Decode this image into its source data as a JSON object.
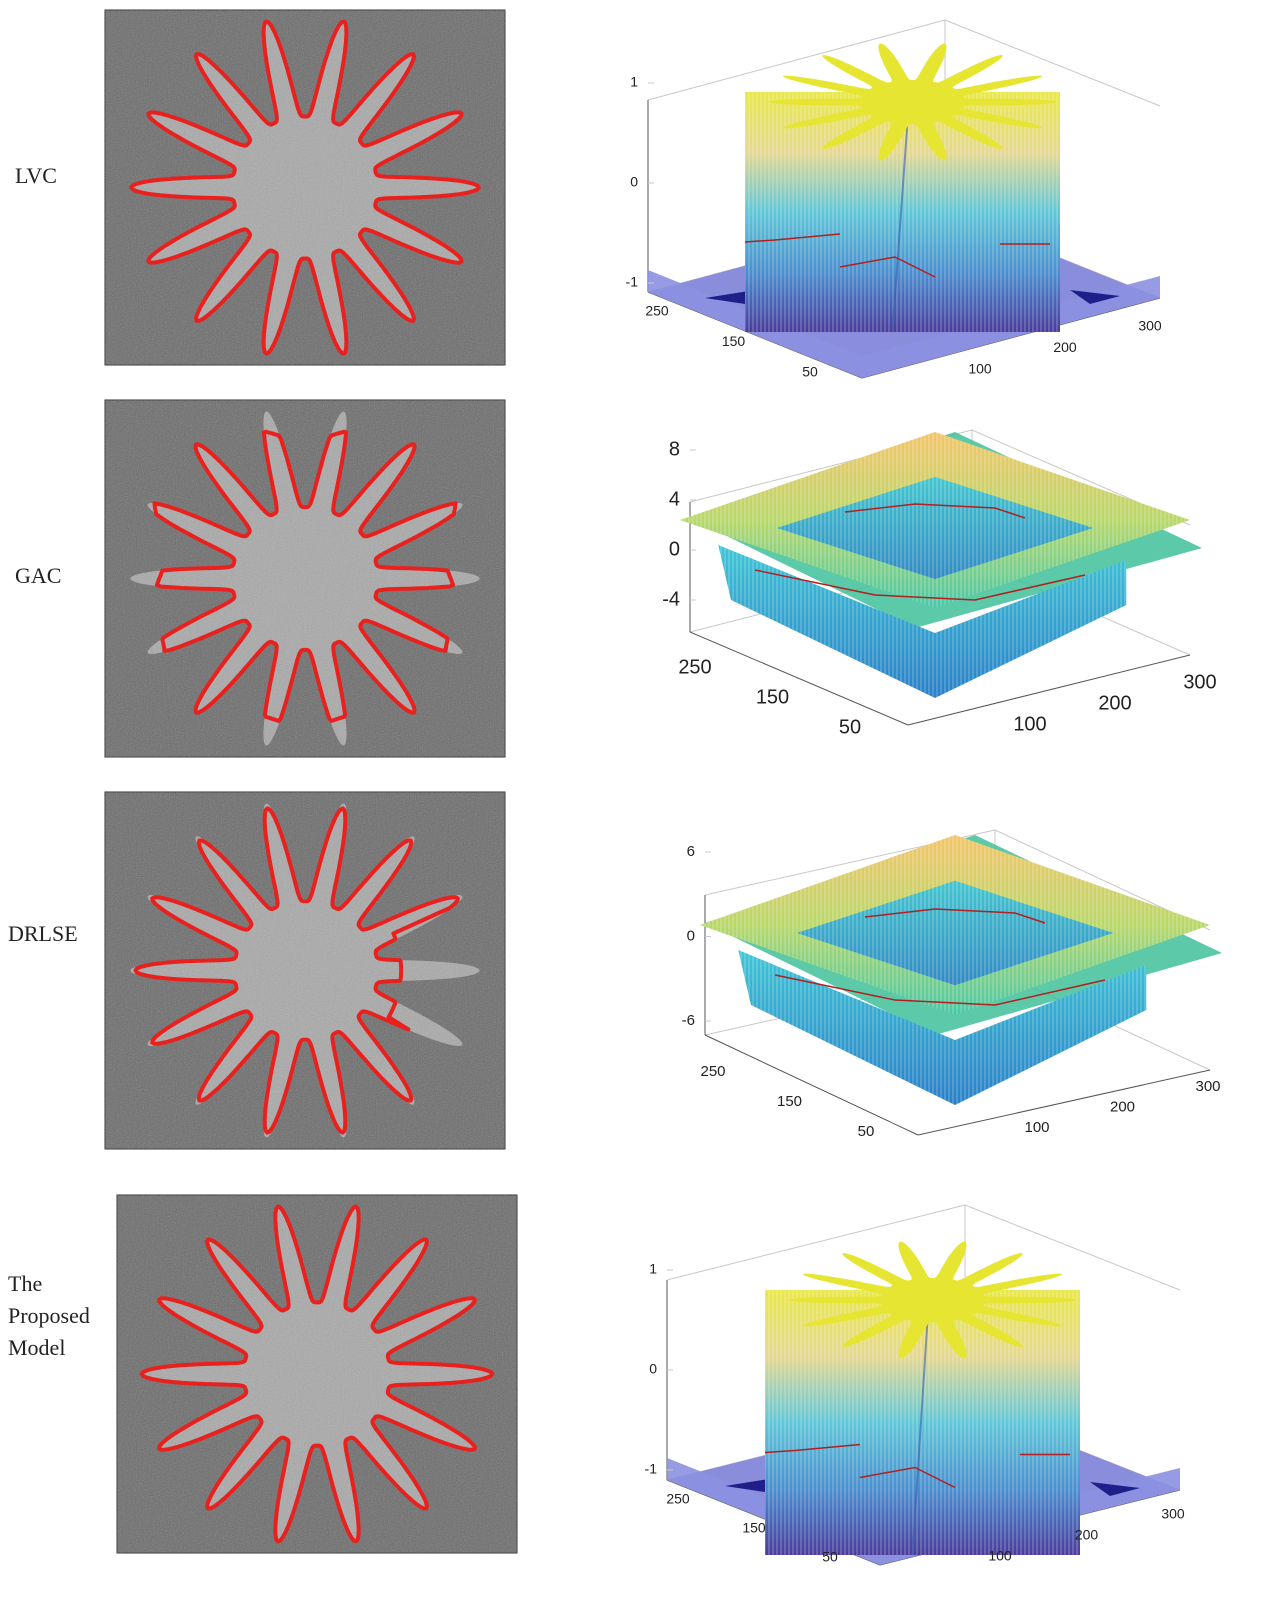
{
  "rows": [
    {
      "label": "LVC",
      "zticks": [
        1,
        0,
        -1
      ],
      "xticks": [
        250,
        150,
        50
      ],
      "yticks": [
        100,
        200,
        300
      ]
    },
    {
      "label": "GAC",
      "zticks": [
        8,
        4,
        0,
        -4
      ],
      "xticks": [
        250,
        150,
        50
      ],
      "yticks": [
        100,
        200,
        300
      ]
    },
    {
      "label": "DRLSE",
      "zticks": [
        6,
        0,
        -6
      ],
      "xticks": [
        250,
        150,
        50
      ],
      "yticks": [
        100,
        200,
        300
      ]
    },
    {
      "label": "The Proposed Model",
      "zticks": [
        1,
        0,
        -1
      ],
      "xticks": [
        250,
        150,
        50
      ],
      "yticks": [
        100,
        200,
        300
      ]
    }
  ]
}
